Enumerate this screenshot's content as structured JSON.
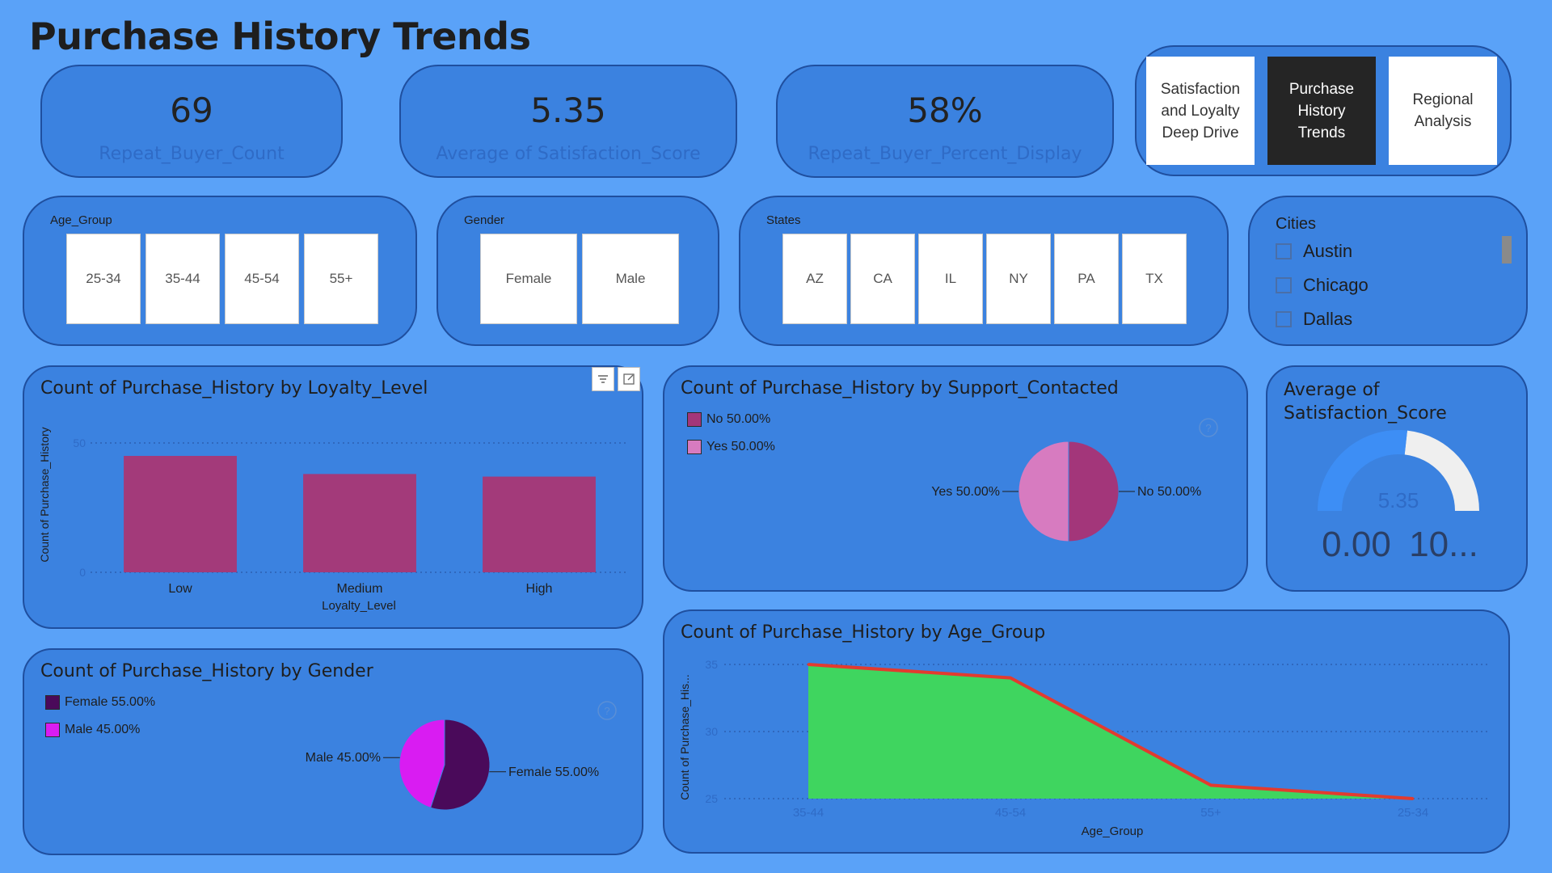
{
  "page": {
    "title": "Purchase History Trends"
  },
  "kpis": [
    {
      "value": "69",
      "label": "Repeat_Buyer_Count"
    },
    {
      "value": "5.35",
      "label": "Average of Satisfaction_Score"
    },
    {
      "value": "58%",
      "label": "Repeat_Buyer_Percent_Display"
    }
  ],
  "nav": [
    {
      "label": "Satisfaction and Loyalty Deep Drive",
      "active": false
    },
    {
      "label": "Purchase History Trends",
      "active": true
    },
    {
      "label": "Regional Analysis",
      "active": false
    }
  ],
  "slicers": {
    "age_group": {
      "title": "Age_Group",
      "items": [
        "25-34",
        "35-44",
        "45-54",
        "55+"
      ]
    },
    "gender": {
      "title": "Gender",
      "items": [
        "Female",
        "Male"
      ]
    },
    "states": {
      "title": "States",
      "items": [
        "AZ",
        "CA",
        "IL",
        "NY",
        "PA",
        "TX"
      ]
    },
    "cities": {
      "title": "Cities",
      "items": [
        "Austin",
        "Chicago",
        "Dallas"
      ]
    }
  },
  "icons": {
    "filter": "filter-icon",
    "focus": "focus-mode-icon",
    "help": "help-icon"
  },
  "colors": {
    "background": "#5aa2f8",
    "card": "#3b82e0",
    "bar": "#a33a7a",
    "pie_no": "#a3367a",
    "pie_yes": "#d77bc0",
    "gender_female": "#4a0a5a",
    "gender_male": "#d91cf2",
    "area_fill": "#3fd55f",
    "area_line": "#e23b2f",
    "gauge_fill": "#3d8ef5",
    "gauge_track": "#efefef"
  },
  "chart_data": [
    {
      "type": "bar",
      "title": "Count of Purchase_History by Loyalty_Level",
      "xlabel": "Loyalty_Level",
      "ylabel": "Count of Purchase_History",
      "categories": [
        "Low",
        "Medium",
        "High"
      ],
      "values": [
        45,
        38,
        37
      ],
      "yticks": [
        "0",
        "50"
      ],
      "ylim": [
        0,
        50
      ],
      "grid": "dotted"
    },
    {
      "type": "pie",
      "title": "Count of Purchase_History by Support_Contacted",
      "legend_position": "top-left",
      "slices": [
        {
          "name": "No",
          "value": 50.0,
          "legend": "No 50.00%",
          "label": "No 50.00%"
        },
        {
          "name": "Yes",
          "value": 50.0,
          "legend": "Yes 50.00%",
          "label": "Yes 50.00%"
        }
      ]
    },
    {
      "type": "gauge",
      "title": "Average of Satisfaction_Score",
      "value": 5.35,
      "value_label": "5.35",
      "min": 0,
      "max": 10,
      "min_label": "0.00",
      "max_label": "10..."
    },
    {
      "type": "pie",
      "title": "Count of Purchase_History by Gender",
      "legend_position": "top-left",
      "slices": [
        {
          "name": "Female",
          "value": 55.0,
          "legend": "Female 55.00%",
          "label": "Female 55.00%"
        },
        {
          "name": "Male",
          "value": 45.0,
          "legend": "Male 45.00%",
          "label": "Male 45.00%"
        }
      ]
    },
    {
      "type": "area",
      "title": "Count of Purchase_History by Age_Group",
      "xlabel": "Age_Group",
      "ylabel": "Count of Purchase_His...",
      "categories": [
        "35-44",
        "45-54",
        "55+",
        "25-34"
      ],
      "values": [
        35,
        34,
        26,
        25
      ],
      "yticks": [
        "25",
        "30",
        "35"
      ],
      "ylim": [
        25,
        35
      ],
      "grid": "dotted"
    }
  ]
}
